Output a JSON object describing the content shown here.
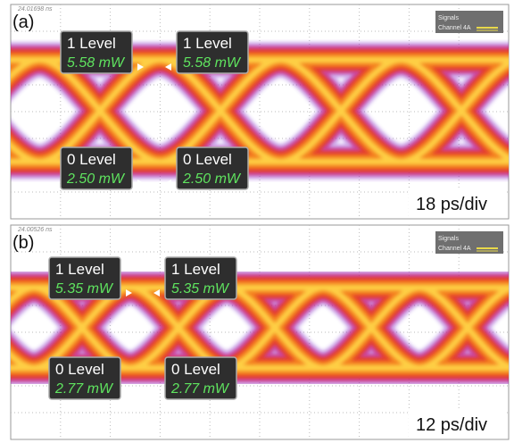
{
  "panels": [
    {
      "label": "(a)",
      "timestamp": "24.01698 ns",
      "legend": {
        "title": "Signals",
        "channel": "Channel 4A"
      },
      "markers": [
        {
          "level": "1 Level",
          "power": "5.58 mW"
        },
        {
          "level": "1 Level",
          "power": "5.58 mW"
        },
        {
          "level": "0 Level",
          "power": "2.50 mW"
        },
        {
          "level": "0 Level",
          "power": "2.50 mW"
        }
      ],
      "scale": "18 ps/div"
    },
    {
      "label": "(b)",
      "timestamp": "24.00526 ns",
      "legend": {
        "title": "Signals",
        "channel": "Channel 4A"
      },
      "markers": [
        {
          "level": "1 Level",
          "power": "5.35 mW"
        },
        {
          "level": "1 Level",
          "power": "5.35 mW"
        },
        {
          "level": "0 Level",
          "power": "2.77 mW"
        },
        {
          "level": "0 Level",
          "power": "2.77 mW"
        }
      ],
      "scale": "12 ps/div"
    }
  ]
}
